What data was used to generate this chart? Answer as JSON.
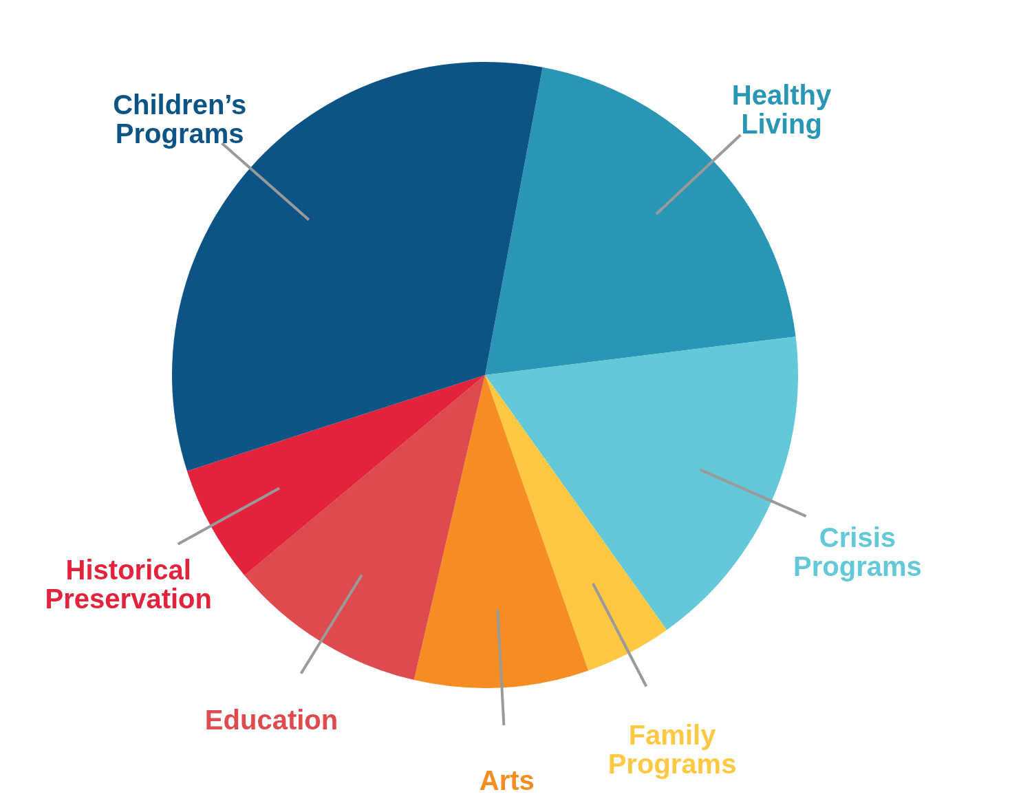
{
  "chart_data": {
    "type": "pie",
    "categories": [
      "Healthy Living",
      "Crisis Programs",
      "Family Programs",
      "Arts",
      "Education",
      "Historical Preservation",
      "Children’s Programs"
    ],
    "values": [
      20.1,
      17.1,
      4.5,
      9.0,
      10.3,
      6.1,
      32.9
    ],
    "colors": [
      "#2896b4",
      "#63c8d8",
      "#fec843",
      "#f58d22",
      "#de4a4d",
      "#e3223c",
      "#0b5485"
    ],
    "legend": false
  }
}
